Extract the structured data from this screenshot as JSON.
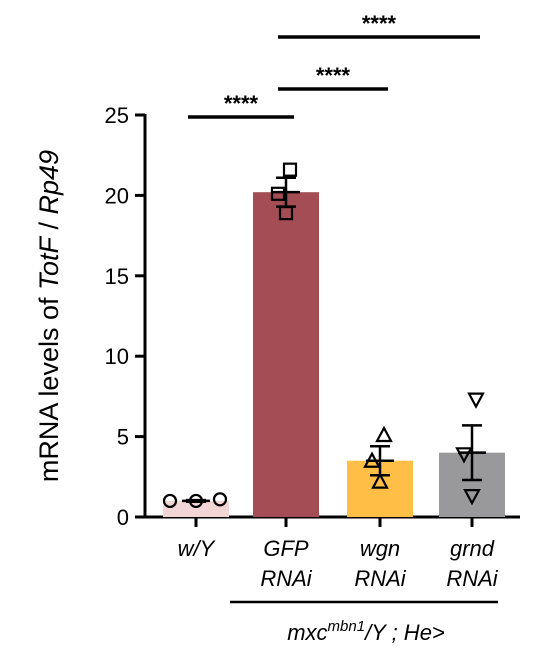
{
  "chart_data": {
    "type": "bar",
    "ylabel_parts": [
      "mRNA levels of ",
      "TotF",
      " / ",
      "Rp49"
    ],
    "ylim": [
      0,
      25
    ],
    "yticks": [
      0,
      5,
      10,
      15,
      20,
      25
    ],
    "bars": [
      {
        "label_lines": [
          "w/Y"
        ],
        "value": 1.0,
        "sem": 0.05,
        "color": "#f2d5d5",
        "marker": "circle",
        "points": [
          1.0,
          1.0,
          1.1
        ]
      },
      {
        "label_lines": [
          "GFP",
          "RNAi"
        ],
        "value": 20.2,
        "sem": 0.9,
        "color": "#a44d55",
        "marker": "square",
        "points": [
          21.6,
          20.1,
          18.9
        ]
      },
      {
        "label_lines": [
          "wgn",
          "RNAi"
        ],
        "value": 3.5,
        "sem": 0.9,
        "color": "#ffbe45",
        "marker": "triangle-up",
        "points": [
          5.1,
          3.5,
          2.2
        ]
      },
      {
        "label_lines": [
          "grnd",
          "RNAi"
        ],
        "value": 4.0,
        "sem": 1.7,
        "color": "#99999b",
        "marker": "triangle-down",
        "points": [
          7.3,
          3.9,
          1.3
        ]
      }
    ],
    "significance": [
      {
        "from": 0,
        "to": 1,
        "label": "****"
      },
      {
        "from": 1,
        "to": 2,
        "label": "****"
      },
      {
        "from": 1,
        "to": 3,
        "label": "****"
      }
    ],
    "genotype": {
      "base": "mxc",
      "sup": "mbn1",
      "rest": "/Y ; He>"
    }
  }
}
